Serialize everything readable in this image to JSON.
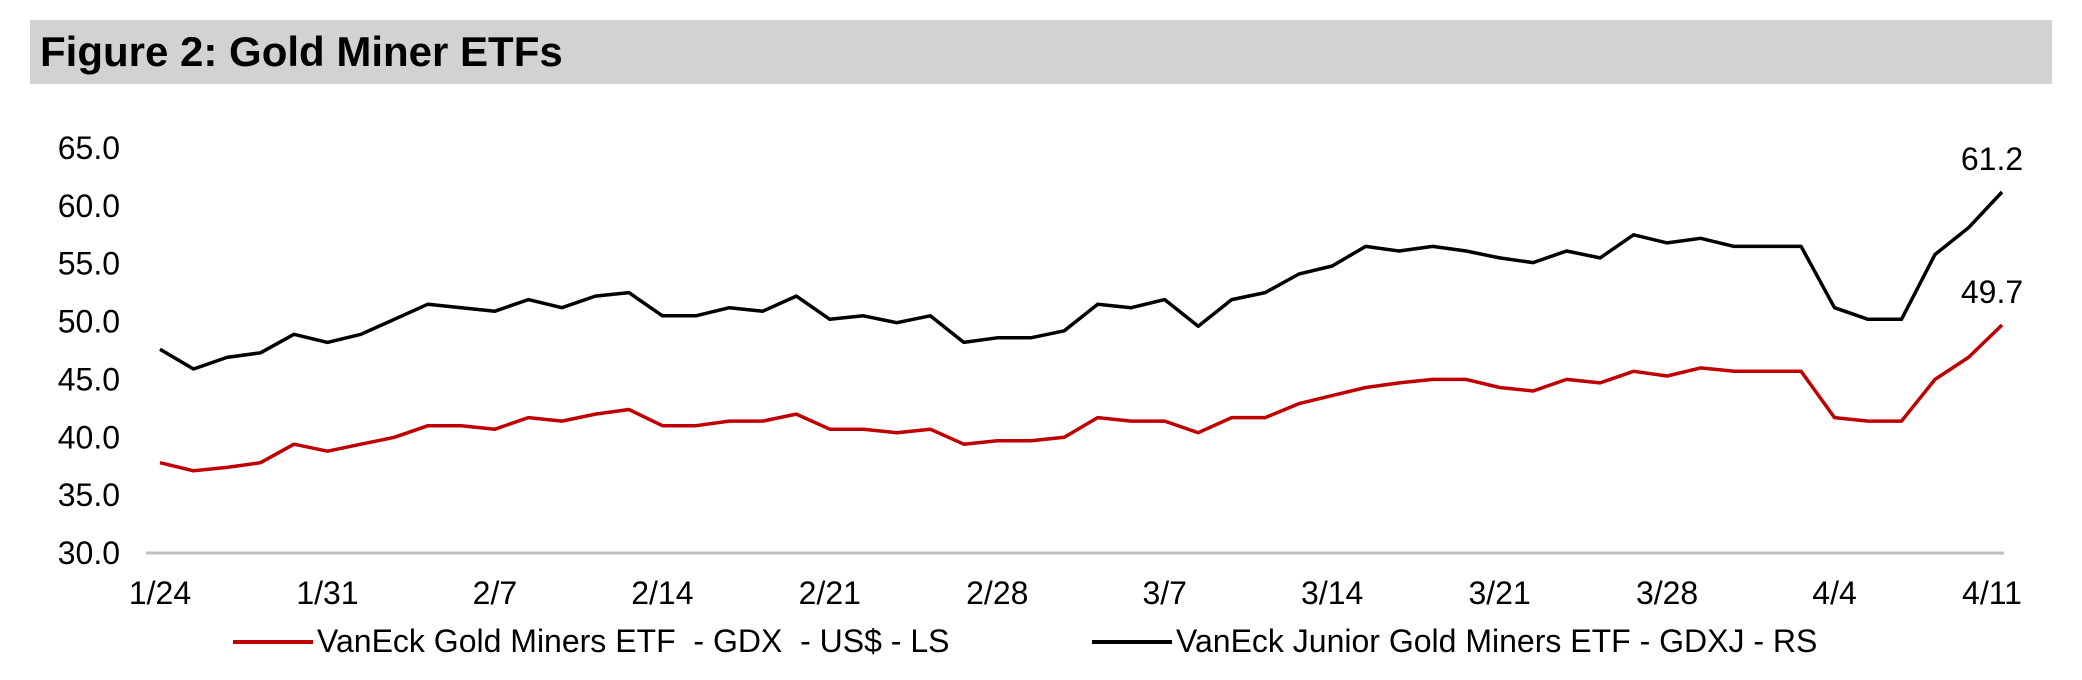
{
  "title": "Figure 2: Gold Miner ETFs",
  "colors": {
    "gdx": "#c00000",
    "gdxj": "#000000",
    "axis": "#bfbfbf",
    "title_bg": "#d3d2d3"
  },
  "chart_data": {
    "type": "line",
    "ylim": [
      30,
      65
    ],
    "yticks": [
      "65.0",
      "60.0",
      "55.0",
      "50.0",
      "45.0",
      "40.0",
      "35.0",
      "30.0"
    ],
    "xticks": [
      "1/24",
      "1/31",
      "2/7",
      "2/14",
      "2/21",
      "2/28",
      "3/7",
      "3/14",
      "3/21",
      "3/28",
      "4/4",
      "4/11"
    ],
    "x": [
      "1/24",
      "1/27",
      "1/28",
      "1/29",
      "1/30",
      "1/31",
      "2/3",
      "2/4",
      "2/5",
      "2/6",
      "2/7",
      "2/10",
      "2/11",
      "2/12",
      "2/13",
      "2/14",
      "2/17",
      "2/18",
      "2/19",
      "2/20",
      "2/21",
      "2/24",
      "2/25",
      "2/26",
      "2/27",
      "2/28",
      "3/3",
      "3/4",
      "3/5",
      "3/6",
      "3/7",
      "3/10",
      "3/11",
      "3/12",
      "3/13",
      "3/14",
      "3/17",
      "3/18",
      "3/19",
      "3/20",
      "3/21",
      "3/24",
      "3/25",
      "3/26",
      "3/27",
      "3/28",
      "3/31",
      "4/1",
      "4/2",
      "4/3",
      "4/4",
      "4/7",
      "4/8",
      "4/9",
      "4/10",
      "4/11"
    ],
    "series": [
      {
        "name": "VanEck Gold Miners ETF  - GDX  - US$ - LS",
        "color": "#c00000",
        "values": [
          37.8,
          37.1,
          37.4,
          37.8,
          39.4,
          38.8,
          39.4,
          40.0,
          41.0,
          41.0,
          40.7,
          41.7,
          41.4,
          42.0,
          42.4,
          41.0,
          41.0,
          41.4,
          41.4,
          42.0,
          40.7,
          40.7,
          40.4,
          40.7,
          39.4,
          39.7,
          39.7,
          40.0,
          41.7,
          41.4,
          41.4,
          40.4,
          41.7,
          41.7,
          42.9,
          43.6,
          44.3,
          44.7,
          45.0,
          45.0,
          44.3,
          44.0,
          45.0,
          44.7,
          45.7,
          45.3,
          46.0,
          45.7,
          45.7,
          45.7,
          41.7,
          41.4,
          41.4,
          45.0,
          46.9,
          49.7
        ],
        "last_label": "49.7"
      },
      {
        "name": "VanEck Junior Gold Miners ETF - GDXJ - RS",
        "color": "#000000",
        "values": [
          47.6,
          45.9,
          46.9,
          47.3,
          48.9,
          48.2,
          48.9,
          50.2,
          51.5,
          51.2,
          50.9,
          51.9,
          51.2,
          52.2,
          52.5,
          50.5,
          50.5,
          51.2,
          50.9,
          52.2,
          50.2,
          50.5,
          49.9,
          50.5,
          48.2,
          48.6,
          48.6,
          49.2,
          51.5,
          51.2,
          51.9,
          49.6,
          51.9,
          52.5,
          54.1,
          54.8,
          56.5,
          56.1,
          56.5,
          56.1,
          55.5,
          55.1,
          56.1,
          55.5,
          57.5,
          56.8,
          57.2,
          56.5,
          56.5,
          56.5,
          51.2,
          50.2,
          50.2,
          55.8,
          58.1,
          61.2
        ],
        "last_label": "61.2"
      }
    ]
  },
  "legend": {
    "gdx_label": "VanEck Gold Miners ETF  - GDX  - US$ - LS",
    "gdxj_label": "VanEck Junior Gold Miners ETF - GDXJ - RS"
  }
}
